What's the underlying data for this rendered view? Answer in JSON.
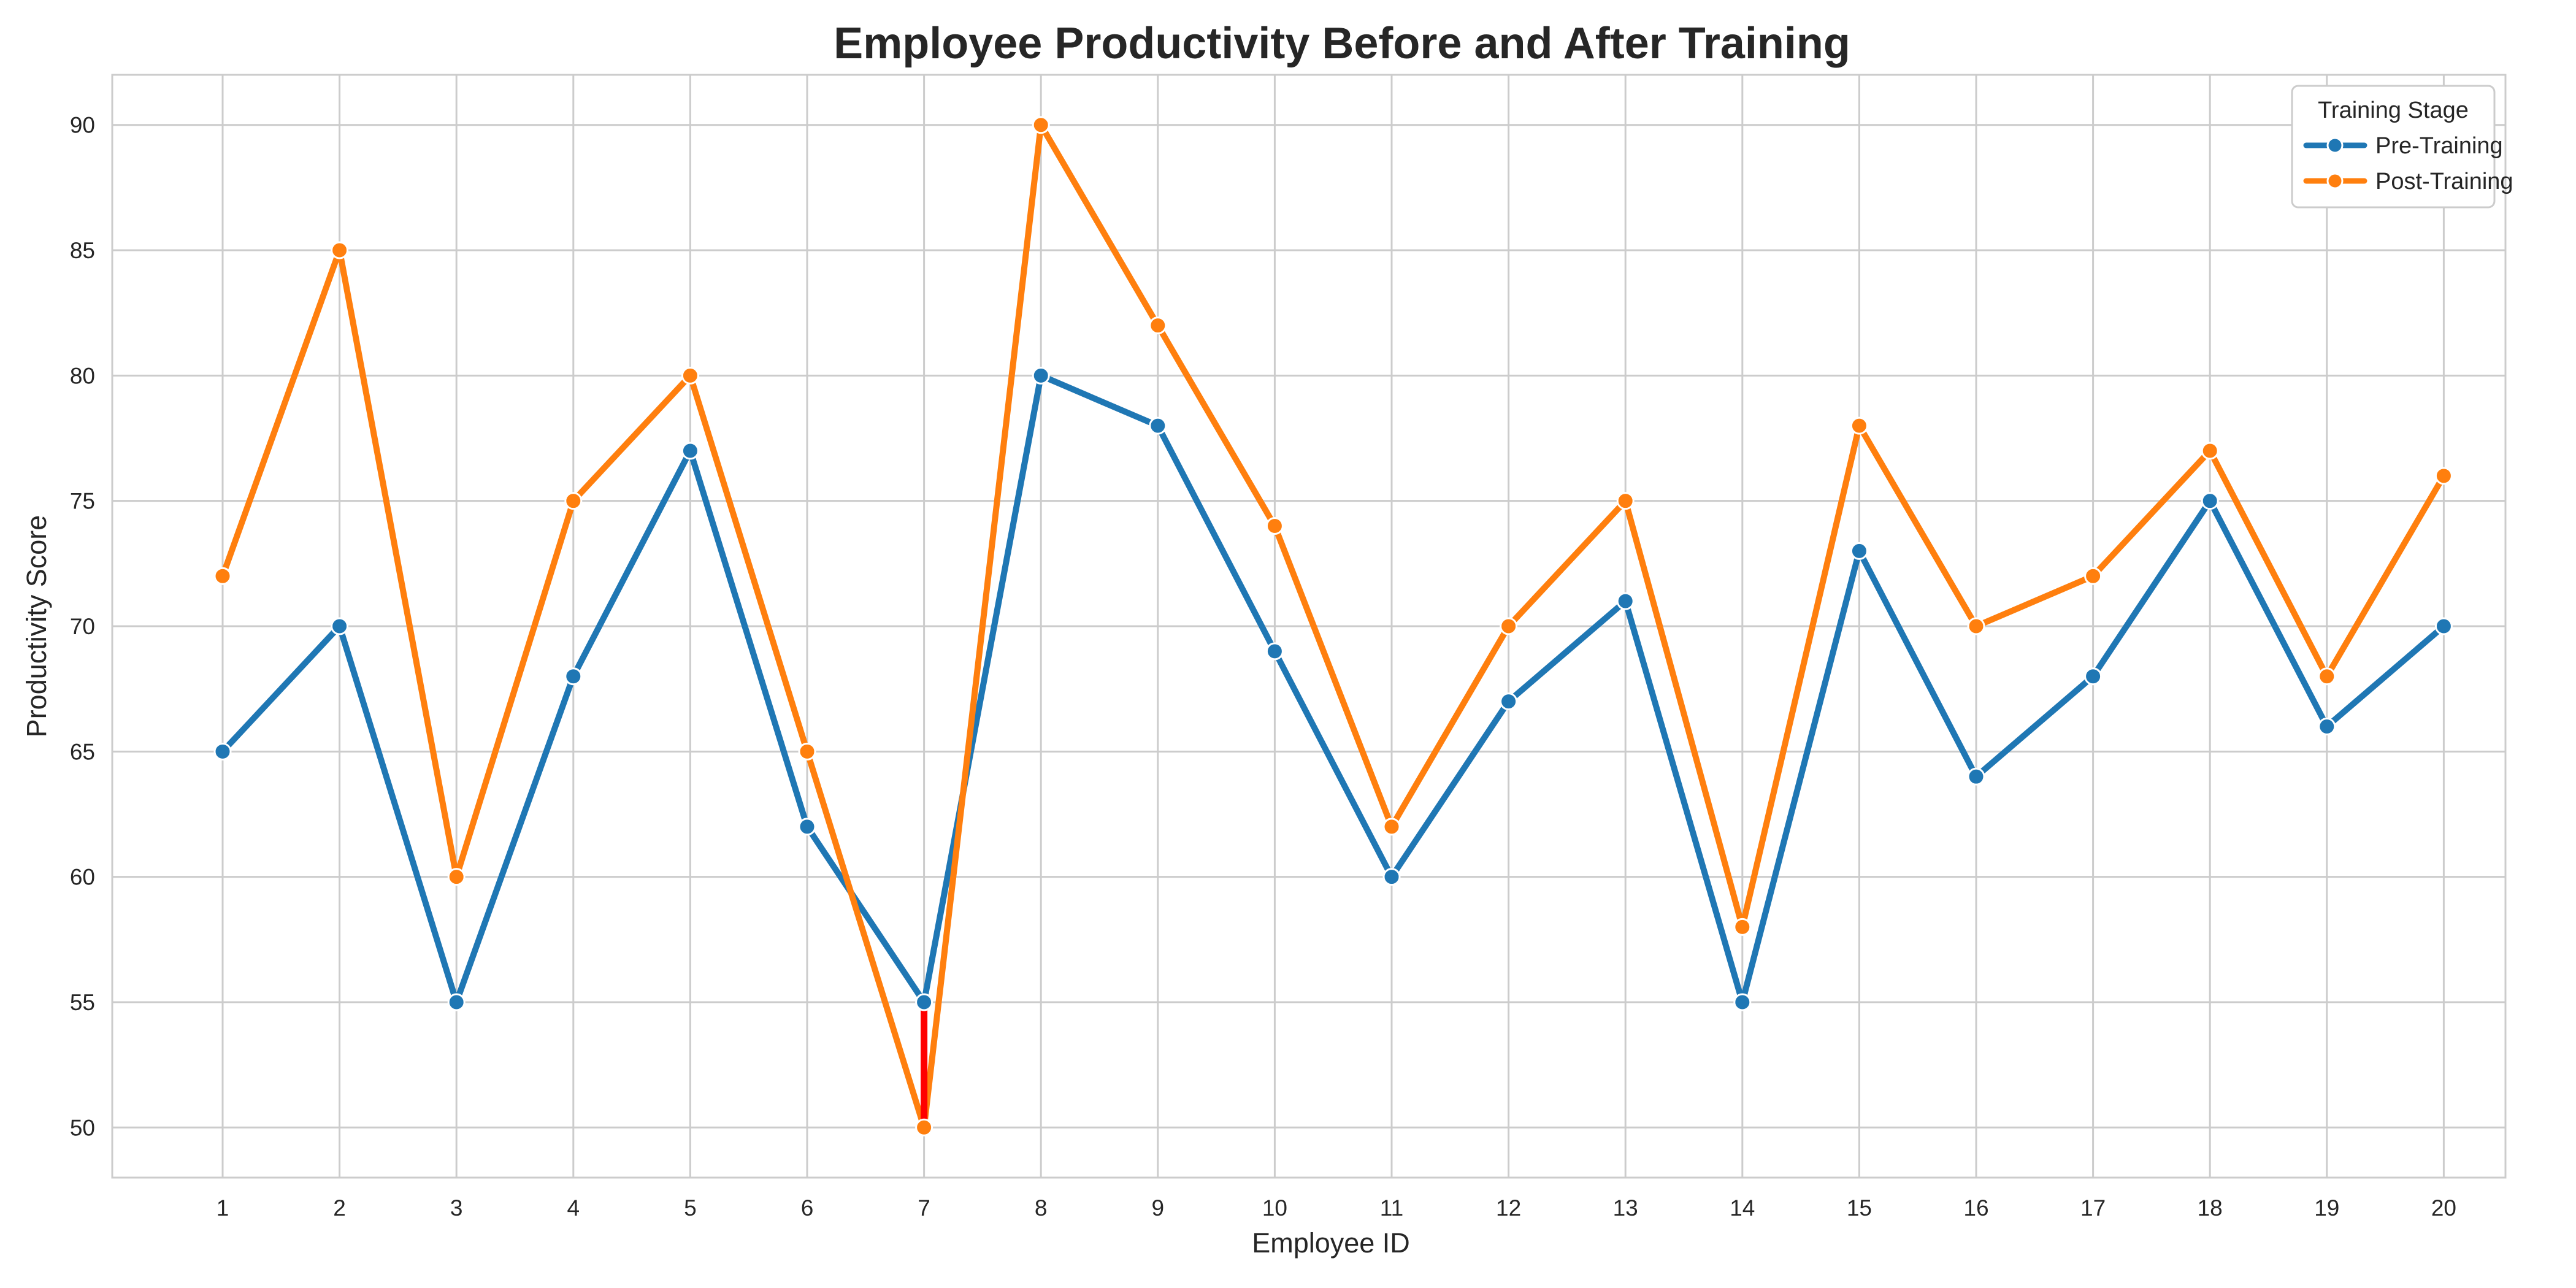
{
  "chart_data": {
    "type": "line",
    "title": "Employee Productivity Before and After Training",
    "xlabel": "Employee ID",
    "ylabel": "Productivity Score",
    "categories": [
      "1",
      "2",
      "3",
      "4",
      "5",
      "6",
      "7",
      "8",
      "9",
      "10",
      "11",
      "12",
      "13",
      "14",
      "15",
      "16",
      "17",
      "18",
      "19",
      "20"
    ],
    "y_ticks": [
      "50",
      "55",
      "60",
      "65",
      "70",
      "75",
      "80",
      "85",
      "90"
    ],
    "ylim": [
      48,
      92
    ],
    "grid": true,
    "legend": {
      "title": "Training Stage",
      "placement": "top-right"
    },
    "series": [
      {
        "name": "Pre-Training",
        "color": "#1f77b4",
        "values": [
          65,
          70,
          55,
          68,
          77,
          62,
          55,
          80,
          78,
          69,
          60,
          67,
          71,
          55,
          73,
          64,
          68,
          75,
          66,
          70
        ]
      },
      {
        "name": "Post-Training",
        "color": "#ff7f0e",
        "values": [
          72,
          85,
          60,
          75,
          80,
          65,
          50,
          90,
          82,
          74,
          62,
          70,
          75,
          58,
          78,
          70,
          72,
          77,
          68,
          76
        ]
      }
    ],
    "annotations": [
      {
        "type": "highlight-drop",
        "x": "7",
        "from": 55,
        "to": 50,
        "color": "#ff0000"
      }
    ]
  }
}
